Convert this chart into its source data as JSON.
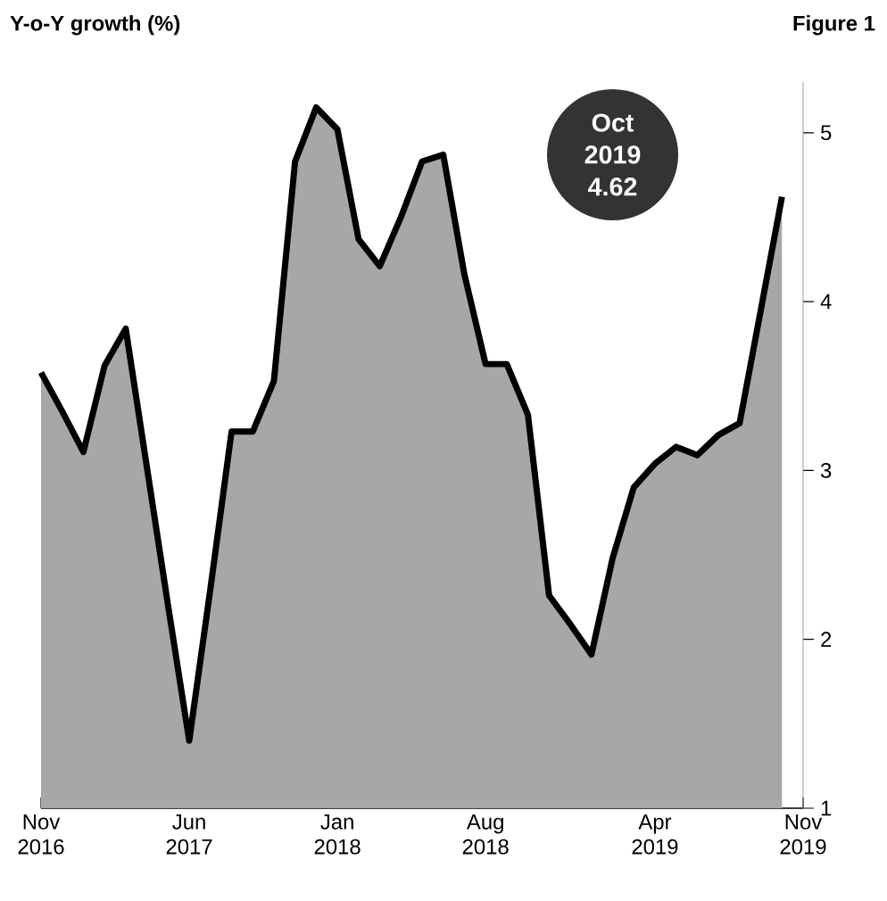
{
  "chart_data": {
    "type": "area",
    "title": "Y-o-Y growth (%)",
    "annotations": [
      "Figure 1",
      "Oct 2019 4.62"
    ],
    "x": [
      "2016-11",
      "2016-12",
      "2017-01",
      "2017-02",
      "2017-03",
      "2017-04",
      "2017-05",
      "2017-06",
      "2017-07",
      "2017-08",
      "2017-09",
      "2017-10",
      "2017-11",
      "2017-12",
      "2018-01",
      "2018-02",
      "2018-03",
      "2018-04",
      "2018-05",
      "2018-06",
      "2018-07",
      "2018-08",
      "2018-09",
      "2018-10",
      "2018-11",
      "2018-12",
      "2019-01",
      "2019-02",
      "2019-03",
      "2019-04",
      "2019-05",
      "2019-06",
      "2019-07",
      "2019-08",
      "2019-09",
      "2019-10"
    ],
    "series": [
      {
        "color": "#a7a7aa",
        "values": [
          3.58,
          3.35,
          3.11,
          3.62,
          3.84,
          3.02,
          2.2,
          1.4,
          2.3,
          3.23,
          3.23,
          3.53,
          4.83,
          5.15,
          5.02,
          4.37,
          4.21,
          4.5,
          4.83,
          4.87,
          4.16,
          3.63,
          3.63,
          3.33,
          2.26,
          2.09,
          1.91,
          2.48,
          2.9,
          3.04,
          3.14,
          3.09,
          3.21,
          3.28,
          3.95,
          4.62
        ]
      }
    ],
    "xlim": [
      "2016-11",
      "2019-11"
    ],
    "ylim": [
      1,
      5.3
    ],
    "xticks": [
      {
        "value": "2016-11",
        "label": "Nov 2016"
      },
      {
        "value": "2017-06",
        "label": "Jun 2017"
      },
      {
        "value": "2018-01",
        "label": "Jan 2018"
      },
      {
        "value": "2018-08",
        "label": "Aug 2018"
      },
      {
        "value": "2019-04",
        "label": "Apr 2019"
      },
      {
        "value": "2019-11",
        "label": "Nov 2019"
      }
    ],
    "yticks": [
      1,
      2,
      3,
      4,
      5
    ]
  }
}
